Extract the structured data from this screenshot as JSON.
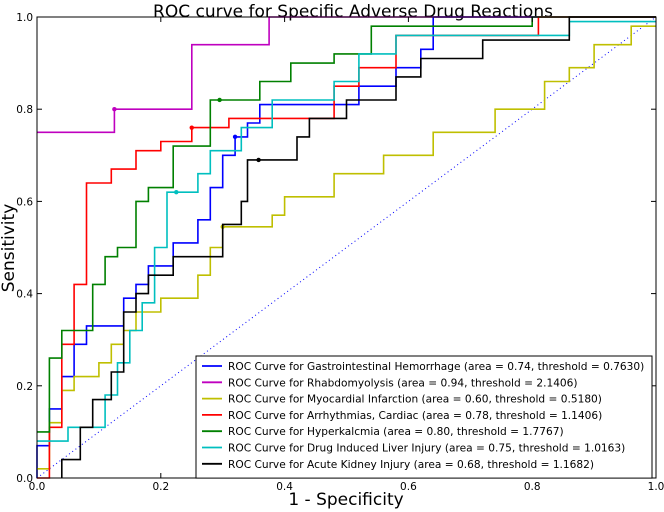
{
  "chart_data": {
    "type": "line",
    "title": "ROC curve for Specific Adverse Drug Reactions",
    "xlabel": "1 - Specificity",
    "ylabel": "Sensitivity",
    "xlim": [
      0,
      1
    ],
    "ylim": [
      0,
      1
    ],
    "x_ticks": [
      "0.0",
      "0.2",
      "0.4",
      "0.6",
      "0.8",
      "1.0"
    ],
    "y_ticks": [
      "0.0",
      "0.2",
      "0.4",
      "0.6",
      "0.8",
      "1.0"
    ],
    "grid": false,
    "legend_position": "lower-right",
    "diagonal_reference": {
      "color": "#0000ff",
      "style": "dotted"
    },
    "series": [
      {
        "name": "ROC Curve for Gastrointestinal Hemorrhage (area = 0.74, threshold = 0.7630)",
        "color": "#0000ff",
        "threshold_point": [
          0.32,
          0.74
        ],
        "points": [
          [
            0,
            0
          ],
          [
            0,
            0.07
          ],
          [
            0.02,
            0.07
          ],
          [
            0.02,
            0.15
          ],
          [
            0.04,
            0.15
          ],
          [
            0.04,
            0.22
          ],
          [
            0.06,
            0.22
          ],
          [
            0.06,
            0.29
          ],
          [
            0.08,
            0.29
          ],
          [
            0.08,
            0.33
          ],
          [
            0.14,
            0.33
          ],
          [
            0.14,
            0.39
          ],
          [
            0.16,
            0.39
          ],
          [
            0.16,
            0.42
          ],
          [
            0.18,
            0.42
          ],
          [
            0.18,
            0.46
          ],
          [
            0.22,
            0.46
          ],
          [
            0.22,
            0.51
          ],
          [
            0.26,
            0.51
          ],
          [
            0.26,
            0.56
          ],
          [
            0.28,
            0.56
          ],
          [
            0.28,
            0.63
          ],
          [
            0.3,
            0.63
          ],
          [
            0.3,
            0.7
          ],
          [
            0.32,
            0.7
          ],
          [
            0.32,
            0.74
          ],
          [
            0.34,
            0.74
          ],
          [
            0.34,
            0.77
          ],
          [
            0.36,
            0.77
          ],
          [
            0.36,
            0.81
          ],
          [
            0.52,
            0.81
          ],
          [
            0.52,
            0.85
          ],
          [
            0.58,
            0.85
          ],
          [
            0.58,
            0.89
          ],
          [
            0.62,
            0.89
          ],
          [
            0.62,
            0.93
          ],
          [
            0.64,
            0.93
          ],
          [
            0.64,
            1.0
          ],
          [
            1.0,
            1.0
          ]
        ]
      },
      {
        "name": "ROC Curve for Rhabdomyolysis (area = 0.94, threshold = 2.1406)",
        "color": "#bf00bf",
        "threshold_point": [
          0.125,
          0.8
        ],
        "points": [
          [
            0,
            0.75
          ],
          [
            0.125,
            0.75
          ],
          [
            0.125,
            0.8
          ],
          [
            0.25,
            0.8
          ],
          [
            0.25,
            0.94
          ],
          [
            0.375,
            0.94
          ],
          [
            0.375,
            1.0
          ],
          [
            1.0,
            1.0
          ]
        ]
      },
      {
        "name": "ROC Curve for Myocardial Infarction (area = 0.60, threshold = 0.5180)",
        "color": "#bfbf00",
        "threshold_point": [
          0.3,
          0.545
        ],
        "points": [
          [
            0,
            0.02
          ],
          [
            0.02,
            0.02
          ],
          [
            0.02,
            0.12
          ],
          [
            0.04,
            0.12
          ],
          [
            0.04,
            0.19
          ],
          [
            0.06,
            0.19
          ],
          [
            0.06,
            0.22
          ],
          [
            0.1,
            0.22
          ],
          [
            0.1,
            0.25
          ],
          [
            0.12,
            0.25
          ],
          [
            0.12,
            0.29
          ],
          [
            0.14,
            0.29
          ],
          [
            0.14,
            0.32
          ],
          [
            0.16,
            0.32
          ],
          [
            0.16,
            0.36
          ],
          [
            0.2,
            0.36
          ],
          [
            0.2,
            0.39
          ],
          [
            0.26,
            0.39
          ],
          [
            0.26,
            0.44
          ],
          [
            0.28,
            0.44
          ],
          [
            0.28,
            0.5
          ],
          [
            0.3,
            0.5
          ],
          [
            0.3,
            0.545
          ],
          [
            0.38,
            0.545
          ],
          [
            0.38,
            0.57
          ],
          [
            0.4,
            0.57
          ],
          [
            0.4,
            0.61
          ],
          [
            0.48,
            0.61
          ],
          [
            0.48,
            0.66
          ],
          [
            0.56,
            0.66
          ],
          [
            0.56,
            0.7
          ],
          [
            0.64,
            0.7
          ],
          [
            0.64,
            0.75
          ],
          [
            0.74,
            0.75
          ],
          [
            0.74,
            0.8
          ],
          [
            0.82,
            0.8
          ],
          [
            0.82,
            0.86
          ],
          [
            0.86,
            0.86
          ],
          [
            0.86,
            0.89
          ],
          [
            0.9,
            0.89
          ],
          [
            0.9,
            0.94
          ],
          [
            0.96,
            0.94
          ],
          [
            0.96,
            0.98
          ],
          [
            1.0,
            0.98
          ]
        ]
      },
      {
        "name": "ROC Curve for Arrhythmias, Cardiac (area = 0.78, threshold = 1.1406)",
        "color": "#ff0000",
        "threshold_point": [
          0.25,
          0.76
        ],
        "points": [
          [
            0,
            0
          ],
          [
            0.02,
            0
          ],
          [
            0.02,
            0.11
          ],
          [
            0.04,
            0.11
          ],
          [
            0.04,
            0.29
          ],
          [
            0.06,
            0.29
          ],
          [
            0.06,
            0.42
          ],
          [
            0.08,
            0.42
          ],
          [
            0.08,
            0.64
          ],
          [
            0.12,
            0.64
          ],
          [
            0.12,
            0.67
          ],
          [
            0.16,
            0.67
          ],
          [
            0.16,
            0.71
          ],
          [
            0.2,
            0.71
          ],
          [
            0.2,
            0.73
          ],
          [
            0.25,
            0.73
          ],
          [
            0.25,
            0.76
          ],
          [
            0.31,
            0.76
          ],
          [
            0.31,
            0.78
          ],
          [
            0.48,
            0.78
          ],
          [
            0.48,
            0.85
          ],
          [
            0.52,
            0.85
          ],
          [
            0.52,
            0.89
          ],
          [
            0.58,
            0.89
          ],
          [
            0.58,
            0.96
          ],
          [
            0.81,
            0.96
          ],
          [
            0.81,
            1.0
          ],
          [
            1.0,
            1.0
          ]
        ]
      },
      {
        "name": "ROC Curve for Hyperkalcmia (area = 0.80, threshold = 1.7767)",
        "color": "#008000",
        "threshold_point": [
          0.295,
          0.82
        ],
        "points": [
          [
            0,
            0.1
          ],
          [
            0.02,
            0.1
          ],
          [
            0.02,
            0.26
          ],
          [
            0.04,
            0.26
          ],
          [
            0.04,
            0.32
          ],
          [
            0.09,
            0.32
          ],
          [
            0.09,
            0.42
          ],
          [
            0.11,
            0.42
          ],
          [
            0.11,
            0.48
          ],
          [
            0.13,
            0.48
          ],
          [
            0.13,
            0.5
          ],
          [
            0.16,
            0.5
          ],
          [
            0.16,
            0.6
          ],
          [
            0.18,
            0.6
          ],
          [
            0.18,
            0.63
          ],
          [
            0.22,
            0.63
          ],
          [
            0.22,
            0.72
          ],
          [
            0.28,
            0.72
          ],
          [
            0.28,
            0.82
          ],
          [
            0.36,
            0.82
          ],
          [
            0.36,
            0.86
          ],
          [
            0.41,
            0.86
          ],
          [
            0.41,
            0.9
          ],
          [
            0.48,
            0.9
          ],
          [
            0.48,
            0.92
          ],
          [
            0.54,
            0.92
          ],
          [
            0.54,
            0.98
          ],
          [
            0.8,
            0.98
          ],
          [
            0.8,
            1.0
          ],
          [
            1.0,
            1.0
          ]
        ]
      },
      {
        "name": "ROC Curve for Drug Induced Liver Injury (area = 0.75, threshold = 1.0163)",
        "color": "#00bfbf",
        "threshold_point": [
          0.225,
          0.62
        ],
        "points": [
          [
            0,
            0.08
          ],
          [
            0.05,
            0.08
          ],
          [
            0.05,
            0.11
          ],
          [
            0.11,
            0.11
          ],
          [
            0.11,
            0.18
          ],
          [
            0.13,
            0.18
          ],
          [
            0.13,
            0.25
          ],
          [
            0.15,
            0.25
          ],
          [
            0.15,
            0.32
          ],
          [
            0.17,
            0.32
          ],
          [
            0.17,
            0.38
          ],
          [
            0.19,
            0.38
          ],
          [
            0.19,
            0.5
          ],
          [
            0.21,
            0.5
          ],
          [
            0.21,
            0.62
          ],
          [
            0.26,
            0.62
          ],
          [
            0.26,
            0.66
          ],
          [
            0.28,
            0.66
          ],
          [
            0.28,
            0.71
          ],
          [
            0.33,
            0.71
          ],
          [
            0.33,
            0.76
          ],
          [
            0.38,
            0.76
          ],
          [
            0.38,
            0.82
          ],
          [
            0.48,
            0.82
          ],
          [
            0.48,
            0.86
          ],
          [
            0.52,
            0.86
          ],
          [
            0.52,
            0.92
          ],
          [
            0.58,
            0.92
          ],
          [
            0.58,
            0.96
          ],
          [
            0.86,
            0.96
          ],
          [
            0.86,
            0.99
          ],
          [
            1.0,
            0.99
          ]
        ]
      },
      {
        "name": "ROC Curve for Acute Kidney Injury (area = 0.68, threshold = 1.1682)",
        "color": "#000000",
        "threshold_point": [
          0.358,
          0.69
        ],
        "points": [
          [
            0.04,
            0
          ],
          [
            0.04,
            0.04
          ],
          [
            0.07,
            0.04
          ],
          [
            0.07,
            0.11
          ],
          [
            0.09,
            0.11
          ],
          [
            0.09,
            0.17
          ],
          [
            0.12,
            0.17
          ],
          [
            0.12,
            0.23
          ],
          [
            0.14,
            0.23
          ],
          [
            0.14,
            0.36
          ],
          [
            0.16,
            0.36
          ],
          [
            0.16,
            0.4
          ],
          [
            0.18,
            0.4
          ],
          [
            0.18,
            0.44
          ],
          [
            0.22,
            0.44
          ],
          [
            0.22,
            0.48
          ],
          [
            0.3,
            0.48
          ],
          [
            0.3,
            0.55
          ],
          [
            0.33,
            0.55
          ],
          [
            0.33,
            0.6
          ],
          [
            0.34,
            0.6
          ],
          [
            0.34,
            0.69
          ],
          [
            0.42,
            0.69
          ],
          [
            0.42,
            0.74
          ],
          [
            0.44,
            0.74
          ],
          [
            0.44,
            0.78
          ],
          [
            0.5,
            0.78
          ],
          [
            0.5,
            0.82
          ],
          [
            0.58,
            0.82
          ],
          [
            0.58,
            0.87
          ],
          [
            0.62,
            0.87
          ],
          [
            0.62,
            0.91
          ],
          [
            0.72,
            0.91
          ],
          [
            0.72,
            0.95
          ],
          [
            0.86,
            0.95
          ],
          [
            0.86,
            1.0
          ],
          [
            1.0,
            1.0
          ]
        ]
      }
    ]
  }
}
